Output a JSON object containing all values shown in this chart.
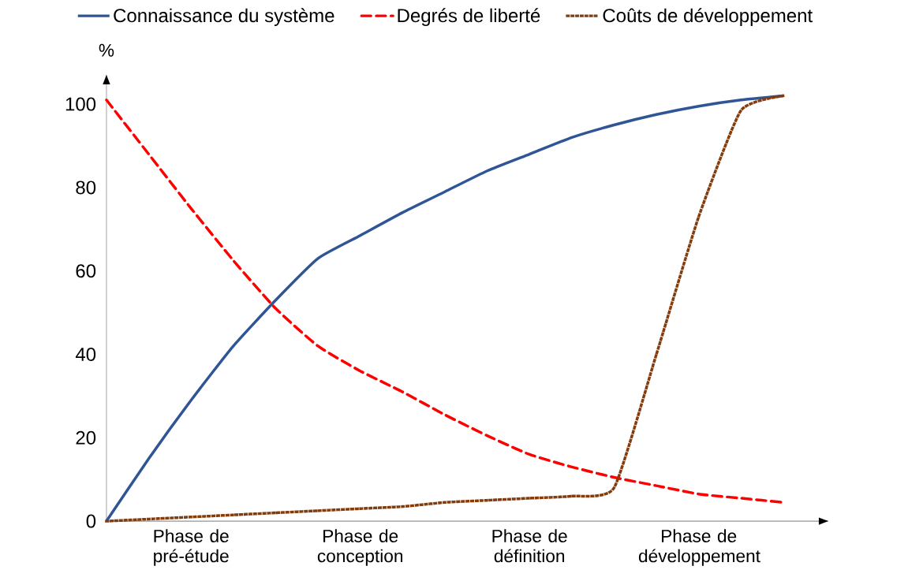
{
  "chart_data": {
    "type": "line",
    "ylabel": "%",
    "categories": [
      null,
      null,
      "Phase de pré-étude",
      null,
      null,
      null,
      "Phase de conception",
      null,
      null,
      null,
      "Phase de définition",
      null,
      null,
      null,
      "Phase de développement",
      null,
      null
    ],
    "ylim": [
      0,
      107
    ],
    "yticks": [
      0,
      20,
      40,
      60,
      80,
      100
    ],
    "legend": "top",
    "grid": false,
    "series": [
      {
        "name": "Connaissance du système",
        "color": "#2f5597",
        "line_style": "solid",
        "values": [
          0,
          15,
          29,
          42,
          53,
          63,
          68.5,
          74,
          79,
          84,
          88,
          92,
          95,
          97.5,
          99.5,
          101,
          102
        ]
      },
      {
        "name": "Degrés de liberté",
        "color": "#ff0000",
        "line_style": "dashed",
        "values": [
          101,
          88,
          75,
          62.5,
          51,
          42,
          36,
          31,
          25.5,
          20.5,
          16,
          13,
          10.5,
          8.5,
          6.5,
          5.5,
          4.5
        ]
      },
      {
        "name": "Coûts de développement",
        "color": "#843c0c",
        "line_style": "dotted",
        "values": [
          0,
          0.5,
          1,
          1.5,
          2,
          2.5,
          3,
          3.5,
          4.5,
          5,
          5.5,
          6,
          8,
          40,
          73,
          98.5,
          102
        ]
      }
    ]
  }
}
